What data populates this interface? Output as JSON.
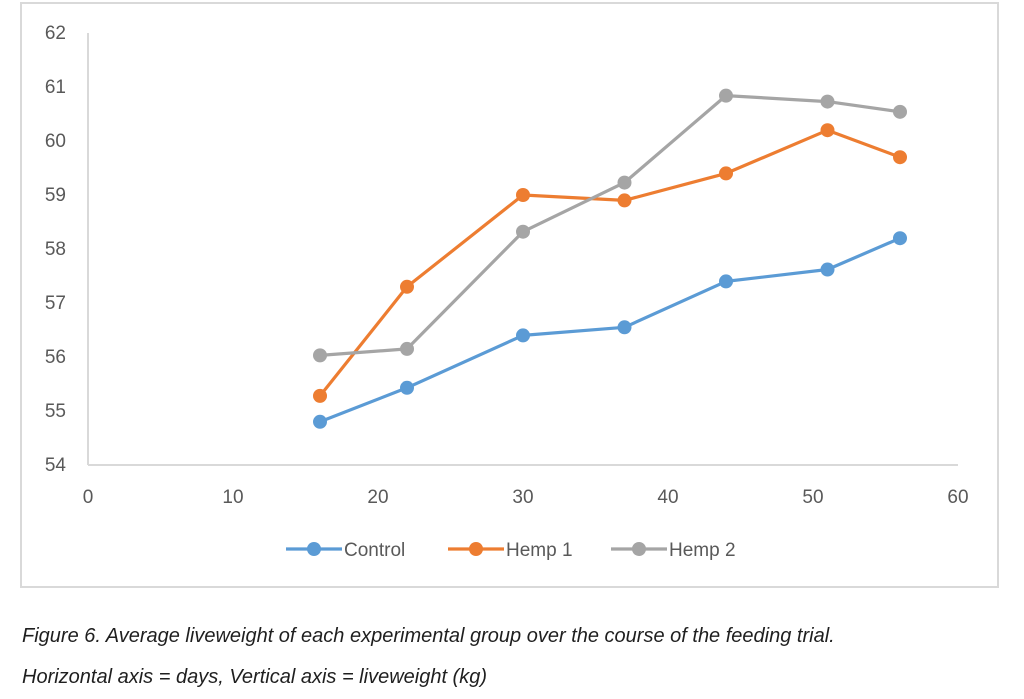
{
  "chart_data": {
    "type": "line",
    "x_ticks": [
      "0",
      "10",
      "20",
      "30",
      "40",
      "50",
      "60"
    ],
    "y_ticks": [
      "54",
      "55",
      "56",
      "57",
      "58",
      "59",
      "60",
      "61",
      "62"
    ],
    "xlim": [
      0,
      60
    ],
    "ylim": [
      54,
      62
    ],
    "grid": false,
    "legend_position": "bottom",
    "series": [
      {
        "name": "Control",
        "color": "#5b9bd5",
        "points": [
          [
            16,
            54.8
          ],
          [
            22,
            55.43
          ],
          [
            30,
            56.4
          ],
          [
            37,
            56.55
          ],
          [
            44,
            57.4
          ],
          [
            51,
            57.62
          ],
          [
            56,
            58.2
          ]
        ]
      },
      {
        "name": "Hemp 1",
        "color": "#ed7d31",
        "points": [
          [
            16,
            55.28
          ],
          [
            22,
            57.3
          ],
          [
            30,
            59.0
          ],
          [
            37,
            58.9
          ],
          [
            44,
            59.4
          ],
          [
            51,
            60.2
          ],
          [
            56,
            59.7
          ]
        ]
      },
      {
        "name": "Hemp 2",
        "color": "#a5a5a5",
        "points": [
          [
            16,
            56.03
          ],
          [
            22,
            56.15
          ],
          [
            30,
            58.32
          ],
          [
            37,
            59.23
          ],
          [
            44,
            60.84
          ],
          [
            51,
            60.73
          ],
          [
            56,
            60.54
          ]
        ]
      }
    ]
  },
  "caption": {
    "line1": "Figure 6. Average liveweight of each experimental group over the course of the feeding trial.",
    "line2": "Horizontal axis = days, Vertical axis = liveweight (kg)"
  }
}
